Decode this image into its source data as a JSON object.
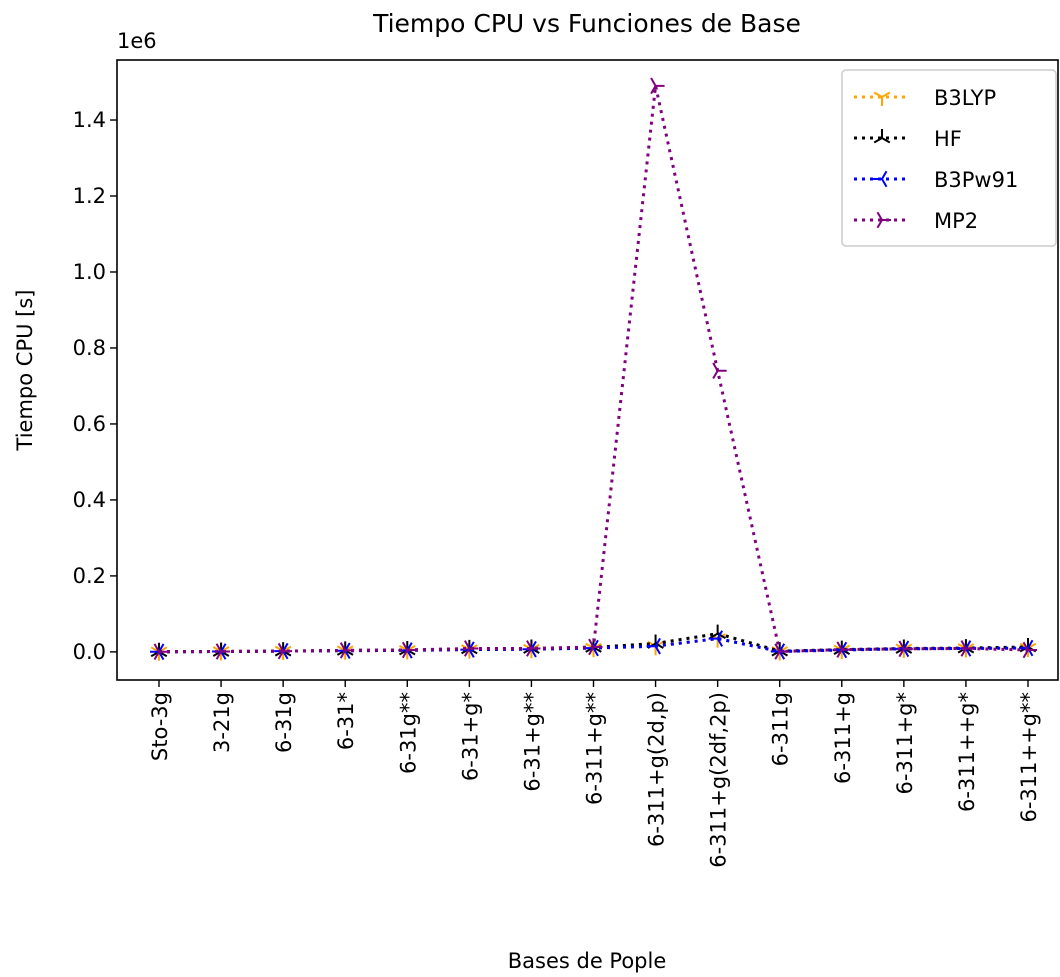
{
  "chart_data": {
    "type": "line",
    "title": "Tiempo CPU vs Funciones de Base",
    "xlabel": "Bases de Pople",
    "ylabel": "Tiempo CPU [s]",
    "y_offset_label": "1e6",
    "categories": [
      "Sto-3g",
      "3-21g",
      "6-31g",
      "6-31*",
      "6-31g**",
      "6-31+g*",
      "6-31+g**",
      "6-311+g**",
      "6-311+g(2d,p)",
      "6-311+g(2df,2p)",
      "6-311g",
      "6-311+g",
      "6-311+g*",
      "6-311++g*",
      "6-311++g**"
    ],
    "series": [
      {
        "name": "B3LYP",
        "color": "#ffa500",
        "marker": "tri_down",
        "values": [
          200,
          1000,
          2000,
          3000,
          4000,
          6000,
          7000,
          10000,
          15000,
          35000,
          1000,
          5000,
          8000,
          9000,
          10000
        ]
      },
      {
        "name": "HF",
        "color": "#000000",
        "marker": "tri_up",
        "values": [
          500,
          1000,
          2000,
          4000,
          5000,
          8000,
          9000,
          12000,
          22000,
          48000,
          2000,
          6000,
          9000,
          10000,
          13000
        ]
      },
      {
        "name": "B3Pw91",
        "color": "#0000ff",
        "marker": "tri_left",
        "values": [
          200,
          1000,
          2000,
          3000,
          4000,
          6000,
          7000,
          10000,
          15000,
          35000,
          1000,
          5000,
          8000,
          9000,
          10000
        ]
      },
      {
        "name": "MP2",
        "color": "#800080",
        "marker": "tri_right",
        "values": [
          500,
          1000,
          2000,
          4000,
          5000,
          9000,
          9000,
          13000,
          1490000,
          740000,
          1000,
          6000,
          8000,
          9000,
          5000
        ]
      }
    ],
    "ylim": [
      -74000,
      1558000
    ],
    "yticks": [
      {
        "value": 0,
        "label": "0.0"
      },
      {
        "value": 200000,
        "label": "0.2"
      },
      {
        "value": 400000,
        "label": "0.4"
      },
      {
        "value": 600000,
        "label": "0.6"
      },
      {
        "value": 800000,
        "label": "0.8"
      },
      {
        "value": 1000000,
        "label": "1.0"
      },
      {
        "value": 1200000,
        "label": "1.2"
      },
      {
        "value": 1400000,
        "label": "1.4"
      }
    ],
    "legend": "upper right",
    "line_style": "dotted"
  }
}
